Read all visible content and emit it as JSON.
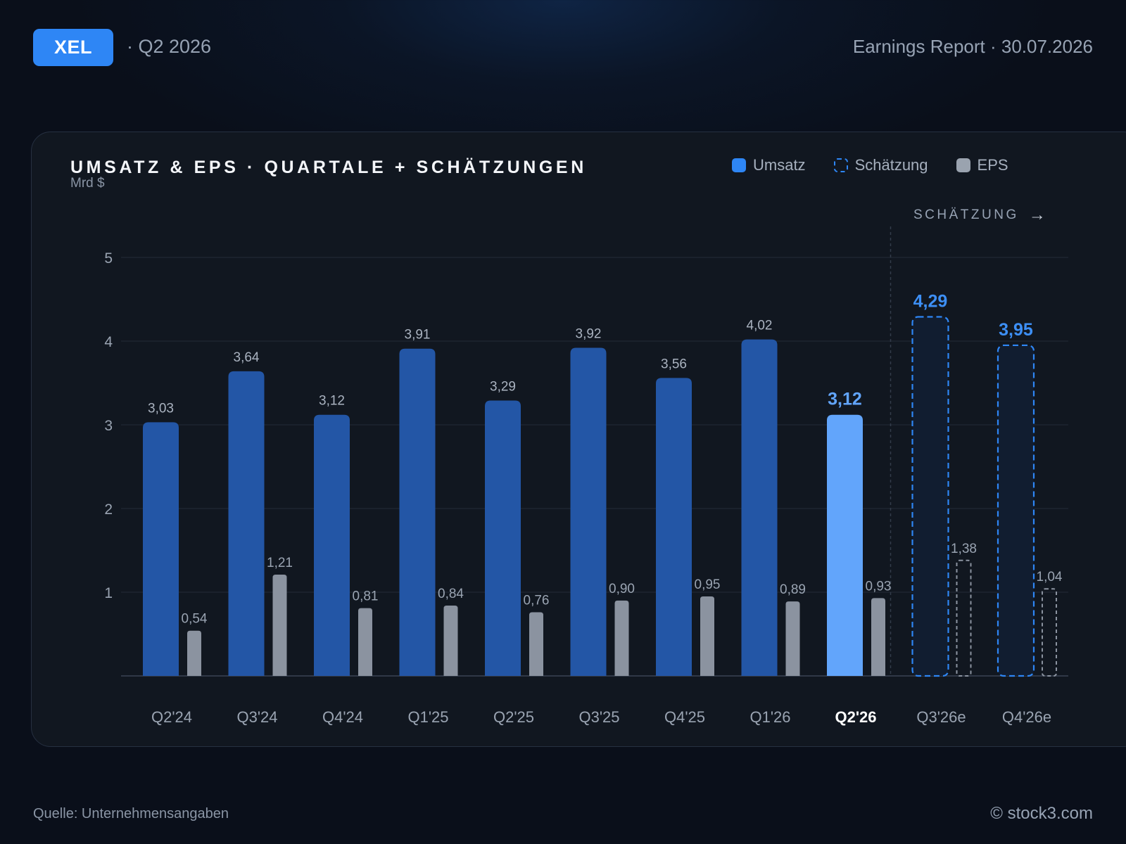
{
  "header": {
    "ticker": "XEL",
    "period": "· Q2 2026",
    "report": "Earnings Report · 30.07.2026"
  },
  "chart_header": {
    "title": "UMSATZ & EPS · QUARTALE + SCHÄTZUNGEN",
    "unit": "Mrd $",
    "estimate_tag": "SCHÄTZUNG",
    "estimate_arrow": "→"
  },
  "legend": [
    {
      "label": "Umsatz"
    },
    {
      "label": "Schätzung"
    },
    {
      "label": "EPS"
    }
  ],
  "colors": {
    "revenue": "#2356a6",
    "revenue_current": "#62a5fb",
    "estimate_border": "#2e86f5",
    "estimate_fill": "#111d30",
    "eps": "#8b93a0",
    "eps_estimate_border": "#8b93a0",
    "grid": "#222b38",
    "axis": "#3a4454"
  },
  "chart_data": {
    "type": "bar",
    "categories": [
      "Q2'24",
      "Q3'24",
      "Q4'24",
      "Q1'25",
      "Q2'25",
      "Q3'25",
      "Q4'25",
      "Q1'26",
      "Q2'26",
      "Q3'26e",
      "Q4'26e"
    ],
    "series": [
      {
        "name": "Umsatz",
        "values": [
          3.03,
          3.64,
          3.12,
          3.91,
          3.29,
          3.92,
          3.56,
          4.02,
          3.12,
          4.29,
          3.95
        ]
      },
      {
        "name": "EPS",
        "values": [
          0.54,
          1.21,
          0.81,
          0.84,
          0.76,
          0.9,
          0.95,
          0.89,
          0.93,
          1.38,
          1.04
        ]
      }
    ],
    "revenue_labels": [
      "3,03",
      "3,64",
      "3,12",
      "3,91",
      "3,29",
      "3,92",
      "3,56",
      "4,02",
      "3,12",
      "4,29",
      "3,95"
    ],
    "eps_labels": [
      "0,54",
      "1,21",
      "0,81",
      "0,84",
      "0,76",
      "0,90",
      "0,95",
      "0,89",
      "0,93",
      "1,38",
      "1,04"
    ],
    "estimate": [
      false,
      false,
      false,
      false,
      false,
      false,
      false,
      false,
      false,
      true,
      true
    ],
    "current_index": 8,
    "y_ticks": [
      1,
      2,
      3,
      4,
      5
    ],
    "ylim": [
      0,
      5
    ],
    "ylabel": "Mrd $",
    "grid": true,
    "legend_position": "top-right"
  },
  "footer": {
    "source": "Quelle: Unternehmensangaben",
    "copyright": "© stock3.com"
  }
}
